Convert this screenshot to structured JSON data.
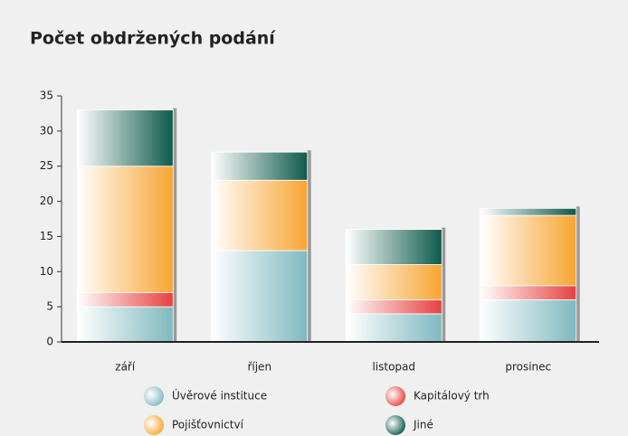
{
  "chart_data": {
    "type": "stacked_bar",
    "title": "Počet obdržených podání",
    "categories": [
      "září",
      "říjen",
      "listopad",
      "prosinec"
    ],
    "series": [
      {
        "name": "Úvěrové instituce",
        "color": "#7fb9c0",
        "values": [
          5,
          13,
          4,
          6
        ]
      },
      {
        "name": "Kapitálový trh",
        "color": "#e8403f",
        "values": [
          2,
          0,
          2,
          2
        ]
      },
      {
        "name": "Pojišťovnictví",
        "color": "#f7a531",
        "values": [
          18,
          10,
          5,
          10
        ]
      },
      {
        "name": "Jiné",
        "color": "#0e5a4a",
        "values": [
          8,
          4,
          5,
          1
        ]
      }
    ],
    "ylim": [
      0,
      35
    ],
    "yticks": [
      0,
      5,
      10,
      15,
      20,
      25,
      30,
      35
    ],
    "grid": false
  }
}
